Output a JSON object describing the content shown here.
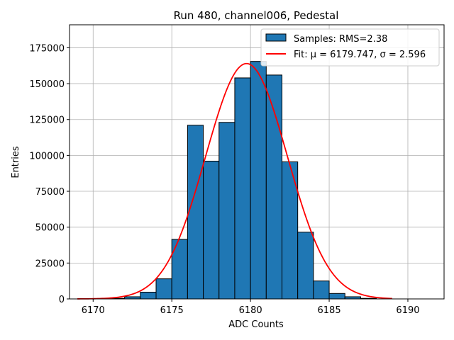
{
  "chart_data": {
    "type": "bar",
    "title": "Run 480, channel006, Pedestal",
    "xlabel": "ADC Counts",
    "ylabel": "Entries",
    "xlim": [
      6168.5,
      6192.3
    ],
    "ylim": [
      0,
      191000
    ],
    "xticks": [
      6170,
      6175,
      6180,
      6185,
      6190
    ],
    "yticks": [
      0,
      25000,
      50000,
      75000,
      100000,
      125000,
      150000,
      175000
    ],
    "grid": true,
    "legend_position": "top-right",
    "colors": {
      "bar_fill": "#1f77b4",
      "bar_edge": "#000000",
      "fit_line": "#ff0000",
      "grid": "#b0b0b0"
    },
    "series": [
      {
        "name": "Samples: RMS=2.38",
        "kind": "histogram",
        "bin_width": 1,
        "bin_left": [
          6171,
          6172,
          6173,
          6174,
          6175,
          6176,
          6177,
          6178,
          6179,
          6180,
          6181,
          6182,
          6183,
          6184,
          6185,
          6186,
          6187
        ],
        "values": [
          400,
          1500,
          4700,
          14000,
          41500,
          121000,
          96000,
          123000,
          154000,
          165500,
          156000,
          95500,
          46500,
          12500,
          3800,
          1500,
          400
        ]
      },
      {
        "name": "Fit: μ = 6179.747, σ = 2.596",
        "kind": "gaussian",
        "mu": 6179.747,
        "sigma": 2.596,
        "amplitude": 164000,
        "x_range": [
          6169,
          6189
        ]
      }
    ]
  }
}
